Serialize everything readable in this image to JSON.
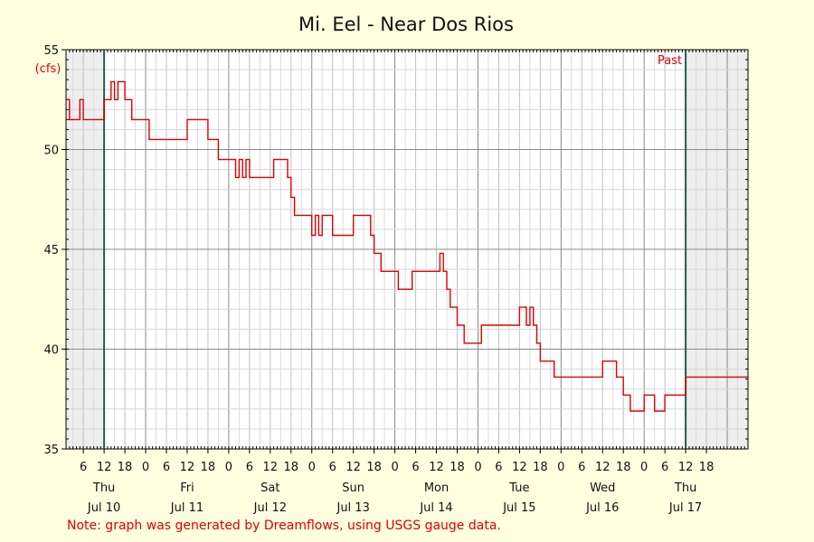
{
  "chart_data": {
    "type": "line",
    "title": "Mi. Eel - Near Dos Rios",
    "ylabel": "(cfs)",
    "xlabel": "",
    "ylim": [
      35,
      55
    ],
    "y_ticks": [
      35,
      40,
      45,
      50,
      55
    ],
    "xlim": [
      "2025-07-09T01:00",
      "2025-07-17T06:00"
    ],
    "x_hour_ticks": [
      {
        "t": "2025-07-09T06:00",
        "label": "6"
      },
      {
        "t": "2025-07-09T12:00",
        "label": "12"
      },
      {
        "t": "2025-07-09T18:00",
        "label": "18"
      },
      {
        "t": "2025-07-10T00:00",
        "label": "0"
      },
      {
        "t": "2025-07-10T06:00",
        "label": "6"
      },
      {
        "t": "2025-07-10T12:00",
        "label": "12"
      },
      {
        "t": "2025-07-10T18:00",
        "label": "18"
      },
      {
        "t": "2025-07-11T00:00",
        "label": "0"
      },
      {
        "t": "2025-07-11T06:00",
        "label": "6"
      },
      {
        "t": "2025-07-11T12:00",
        "label": "12"
      },
      {
        "t": "2025-07-11T18:00",
        "label": "18"
      },
      {
        "t": "2025-07-12T00:00",
        "label": "0"
      },
      {
        "t": "2025-07-12T06:00",
        "label": "6"
      },
      {
        "t": "2025-07-12T12:00",
        "label": "12"
      },
      {
        "t": "2025-07-12T18:00",
        "label": "18"
      },
      {
        "t": "2025-07-13T00:00",
        "label": "0"
      },
      {
        "t": "2025-07-13T06:00",
        "label": "6"
      },
      {
        "t": "2025-07-13T12:00",
        "label": "12"
      },
      {
        "t": "2025-07-13T18:00",
        "label": "18"
      },
      {
        "t": "2025-07-14T00:00",
        "label": "0"
      },
      {
        "t": "2025-07-14T06:00",
        "label": "6"
      },
      {
        "t": "2025-07-14T12:00",
        "label": "12"
      },
      {
        "t": "2025-07-14T18:00",
        "label": "18"
      },
      {
        "t": "2025-07-15T00:00",
        "label": "0"
      },
      {
        "t": "2025-07-15T06:00",
        "label": "6"
      },
      {
        "t": "2025-07-15T12:00",
        "label": "12"
      },
      {
        "t": "2025-07-15T18:00",
        "label": "18"
      },
      {
        "t": "2025-07-16T00:00",
        "label": "0"
      },
      {
        "t": "2025-07-16T06:00",
        "label": "6"
      },
      {
        "t": "2025-07-16T12:00",
        "label": "12"
      },
      {
        "t": "2025-07-16T18:00",
        "label": "18"
      }
    ],
    "day_labels": [
      {
        "t": "2025-07-09T12:00",
        "weekday": "Thu",
        "date": "Jul 10"
      },
      {
        "t": "2025-07-10T12:00",
        "weekday": "Fri",
        "date": "Jul 11"
      },
      {
        "t": "2025-07-11T12:00",
        "weekday": "Sat",
        "date": "Jul 12"
      },
      {
        "t": "2025-07-12T12:00",
        "weekday": "Sun",
        "date": "Jul 13"
      },
      {
        "t": "2025-07-13T12:00",
        "weekday": "Mon",
        "date": "Jul 14"
      },
      {
        "t": "2025-07-14T12:00",
        "weekday": "Tue",
        "date": "Jul 15"
      },
      {
        "t": "2025-07-15T12:00",
        "weekday": "Wed",
        "date": "Jul 16"
      },
      {
        "t": "2025-07-16T12:00",
        "weekday": "Thu",
        "date": "Jul 17"
      }
    ],
    "markers": [
      {
        "t": "2025-07-09T12:00",
        "color": "#1f5f4f"
      },
      {
        "t": "2025-07-16T12:00",
        "color": "#1f5f4f"
      }
    ],
    "shaded_before": "2025-07-09T12:00",
    "shaded_after": "2025-07-16T12:00",
    "past_label": "Past",
    "grid": true,
    "line_color": "#e00000",
    "series": [
      {
        "x": [
          "2025-07-09T01:00",
          "2025-07-09T02:00",
          "2025-07-09T03:00",
          "2025-07-09T04:00",
          "2025-07-09T05:00",
          "2025-07-09T06:00",
          "2025-07-09T09:00",
          "2025-07-09T12:00",
          "2025-07-09T14:00",
          "2025-07-09T15:00",
          "2025-07-09T16:00",
          "2025-07-09T18:00",
          "2025-07-09T20:00",
          "2025-07-10T00:00",
          "2025-07-10T01:00",
          "2025-07-10T06:00",
          "2025-07-10T10:00",
          "2025-07-10T12:00",
          "2025-07-10T16:00",
          "2025-07-10T18:00",
          "2025-07-10T20:00",
          "2025-07-10T21:00",
          "2025-07-10T23:00",
          "2025-07-11T02:00",
          "2025-07-11T03:00",
          "2025-07-11T04:00",
          "2025-07-11T05:00",
          "2025-07-11T06:00",
          "2025-07-11T10:00",
          "2025-07-11T13:00",
          "2025-07-11T16:00",
          "2025-07-11T17:00",
          "2025-07-11T18:00",
          "2025-07-11T19:00",
          "2025-07-11T20:00",
          "2025-07-12T00:00",
          "2025-07-12T01:00",
          "2025-07-12T02:00",
          "2025-07-12T03:00",
          "2025-07-12T05:00",
          "2025-07-12T06:00",
          "2025-07-12T08:00",
          "2025-07-12T12:00",
          "2025-07-12T16:00",
          "2025-07-12T17:00",
          "2025-07-12T18:00",
          "2025-07-12T20:00",
          "2025-07-13T00:00",
          "2025-07-13T01:00",
          "2025-07-13T02:00",
          "2025-07-13T05:00",
          "2025-07-13T06:00",
          "2025-07-13T07:00",
          "2025-07-13T09:00",
          "2025-07-13T11:00",
          "2025-07-13T13:00",
          "2025-07-13T14:00",
          "2025-07-13T15:00",
          "2025-07-13T16:00",
          "2025-07-13T18:00",
          "2025-07-13T19:00",
          "2025-07-13T20:00",
          "2025-07-13T21:00",
          "2025-07-14T01:00",
          "2025-07-14T02:00",
          "2025-07-14T06:00",
          "2025-07-14T10:00",
          "2025-07-14T12:00",
          "2025-07-14T14:00",
          "2025-07-14T15:00",
          "2025-07-14T16:00",
          "2025-07-14T17:00",
          "2025-07-14T18:00",
          "2025-07-14T22:00",
          "2025-07-15T02:00",
          "2025-07-15T03:00",
          "2025-07-15T05:00",
          "2025-07-15T09:00",
          "2025-07-15T12:00",
          "2025-07-15T14:00",
          "2025-07-15T15:00",
          "2025-07-15T16:00",
          "2025-07-15T18:00",
          "2025-07-15T20:00",
          "2025-07-16T00:00",
          "2025-07-16T03:00",
          "2025-07-16T04:00",
          "2025-07-16T05:00",
          "2025-07-16T06:00",
          "2025-07-16T08:00",
          "2025-07-16T10:00",
          "2025-07-16T12:00",
          "2025-07-16T13:00",
          "2025-07-16T14:00"
        ],
        "y": [
          52.5,
          51.5,
          51.5,
          51.5,
          52.5,
          51.5,
          51.5,
          52.5,
          53.4,
          52.5,
          53.4,
          52.5,
          51.5,
          51.5,
          50.5,
          50.5,
          50.5,
          51.5,
          51.5,
          50.5,
          50.5,
          49.5,
          49.5,
          48.6,
          49.5,
          48.6,
          49.5,
          48.6,
          48.6,
          49.5,
          49.5,
          48.6,
          47.6,
          46.7,
          46.7,
          45.7,
          46.7,
          45.7,
          46.7,
          46.7,
          45.7,
          45.7,
          46.7,
          46.7,
          45.7,
          44.8,
          43.9,
          43.9,
          43.0,
          43.0,
          43.9,
          43.9,
          43.9,
          43.9,
          43.9,
          44.8,
          43.9,
          43.0,
          42.1,
          41.2,
          41.2,
          40.3,
          40.3,
          41.2,
          41.2,
          41.2,
          41.2,
          42.1,
          41.2,
          42.1,
          41.2,
          40.3,
          39.4,
          38.6,
          38.6,
          38.6,
          38.6,
          38.6,
          39.4,
          39.4,
          39.4,
          38.6,
          37.7,
          36.9,
          37.7,
          36.9,
          36.9,
          36.9,
          37.7,
          37.7,
          37.7,
          38.6,
          38.6,
          38.6
        ]
      }
    ]
  },
  "footer": {
    "note": "Note: graph was generated by Dreamflows, using USGS gauge data."
  }
}
